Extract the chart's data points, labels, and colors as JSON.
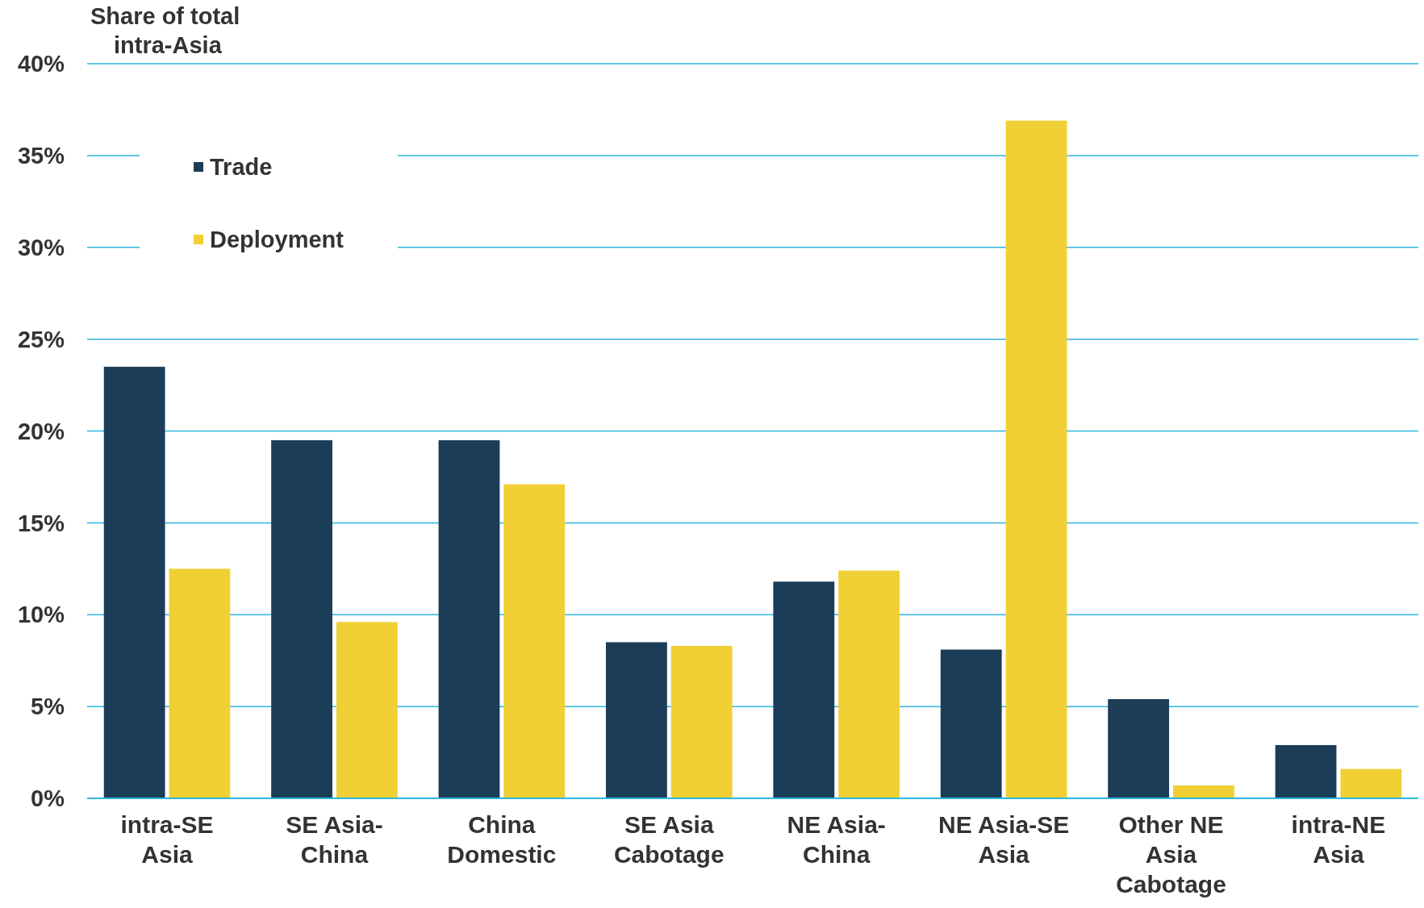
{
  "chart_data": {
    "type": "bar",
    "ylabel": "Share of total intra-Asia",
    "categories": [
      "intra-SE Asia",
      "SE Asia-China",
      "China Domestic",
      "SE Asia Cabotage",
      "NE Asia-China",
      "NE Asia-SE Asia",
      "Other NE Asia Cabotage",
      "intra-NE Asia"
    ],
    "series": [
      {
        "name": "Trade",
        "color": "#1b3d57",
        "values": [
          23.5,
          19.5,
          19.5,
          8.5,
          11.8,
          8.1,
          5.4,
          2.9
        ]
      },
      {
        "name": "Deployment",
        "color": "#f0d034",
        "values": [
          12.5,
          9.6,
          17.1,
          8.3,
          12.4,
          36.9,
          0.7,
          1.6
        ]
      }
    ],
    "ylim": [
      0,
      40
    ],
    "yticks": [
      {
        "value": 0,
        "label": "0%"
      },
      {
        "value": 5,
        "label": "5%"
      },
      {
        "value": 10,
        "label": "10%"
      },
      {
        "value": 15,
        "label": "15%"
      },
      {
        "value": 20,
        "label": "20%"
      },
      {
        "value": 25,
        "label": "25%"
      },
      {
        "value": 30,
        "label": "30%"
      },
      {
        "value": 35,
        "label": "35%"
      },
      {
        "value": 40,
        "label": "40%"
      }
    ],
    "grid": "y",
    "legend": "top left"
  }
}
